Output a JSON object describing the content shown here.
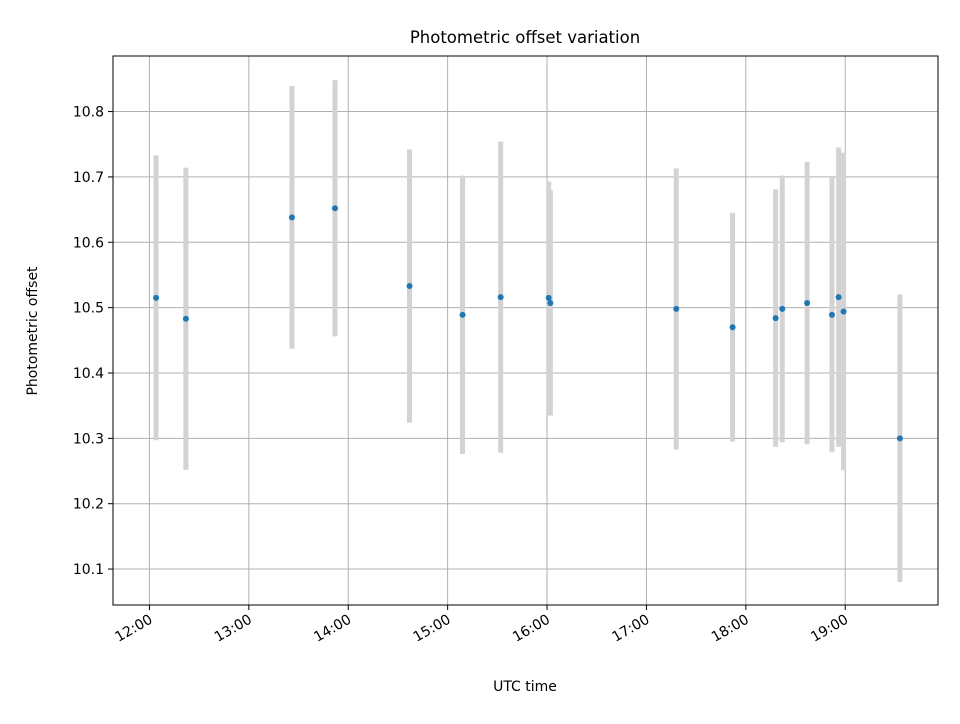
{
  "chart_data": {
    "type": "scatter",
    "title": "Photometric offset variation",
    "xlabel": "UTC time",
    "ylabel": "Photometric offset",
    "x_tick_labels": [
      "12:00",
      "13:00",
      "14:00",
      "15:00",
      "16:00",
      "17:00",
      "18:00",
      "19:00"
    ],
    "x_tick_values": [
      "12:00",
      "13:00",
      "14:00",
      "15:00",
      "16:00",
      "17:00",
      "18:00",
      "19:00"
    ],
    "y_tick_labels": [
      "10.1",
      "10.2",
      "10.3",
      "10.4",
      "10.5",
      "10.6",
      "10.7",
      "10.8"
    ],
    "y_tick_values": [
      10.1,
      10.2,
      10.3,
      10.4,
      10.5,
      10.6,
      10.7,
      10.8
    ],
    "xlim": [
      "11:38",
      "19:56"
    ],
    "ylim": [
      10.045,
      10.885
    ],
    "grid": true,
    "colors": {
      "point": "#1f77b4",
      "errorbar": "#d3d3d3",
      "grid": "#b0b0b0",
      "axes": "#000000"
    },
    "points": [
      {
        "x": "12:04",
        "y": 10.515,
        "yerr": 0.218
      },
      {
        "x": "12:22",
        "y": 10.483,
        "yerr": 0.231
      },
      {
        "x": "13:26",
        "y": 10.638,
        "yerr": 0.201
      },
      {
        "x": "13:52",
        "y": 10.652,
        "yerr": 0.196
      },
      {
        "x": "14:37",
        "y": 10.533,
        "yerr": 0.209
      },
      {
        "x": "15:09",
        "y": 10.489,
        "yerr": 0.213
      },
      {
        "x": "15:32",
        "y": 10.516,
        "yerr": 0.238
      },
      {
        "x": "16:01",
        "y": 10.515,
        "yerr": 0.178
      },
      {
        "x": "16:02",
        "y": 10.507,
        "yerr": 0.172
      },
      {
        "x": "17:18",
        "y": 10.498,
        "yerr": 0.215
      },
      {
        "x": "17:52",
        "y": 10.47,
        "yerr": 0.175
      },
      {
        "x": "18:18",
        "y": 10.484,
        "yerr": 0.197
      },
      {
        "x": "18:22",
        "y": 10.498,
        "yerr": 0.204
      },
      {
        "x": "18:37",
        "y": 10.507,
        "yerr": 0.216
      },
      {
        "x": "18:52",
        "y": 10.489,
        "yerr": 0.21
      },
      {
        "x": "18:56",
        "y": 10.516,
        "yerr": 0.229
      },
      {
        "x": "18:59",
        "y": 10.494,
        "yerr": 0.243
      },
      {
        "x": "19:33",
        "y": 10.3,
        "yerr": 0.22
      }
    ]
  }
}
